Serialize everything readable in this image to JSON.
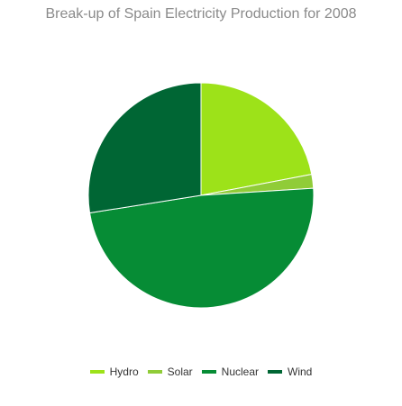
{
  "chart_data": {
    "type": "pie",
    "title": "Break-up of Spain Electricity Production for 2008",
    "categories": [
      "Hydro",
      "Solar",
      "Nuclear",
      "Wind"
    ],
    "values": [
      22.0,
      2.0,
      48.5,
      27.5
    ],
    "colors": [
      "#9de219",
      "#90cc38",
      "#068c35",
      "#006634"
    ],
    "start_angle_deg": 0,
    "direction": "clockwise",
    "legend_position": "bottom"
  }
}
